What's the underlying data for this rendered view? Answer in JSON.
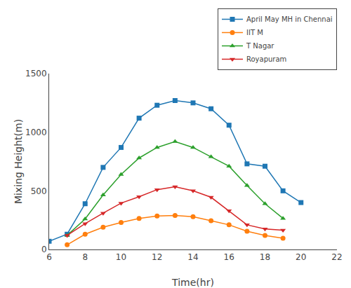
{
  "chart_data": {
    "type": "line",
    "x_label": "Time(hr)",
    "y_label": "Mixing Height(m)",
    "xlim": [
      6,
      22
    ],
    "ylim": [
      0,
      1500
    ],
    "xticks": [
      6,
      8,
      10,
      12,
      14,
      16,
      18,
      20,
      22
    ],
    "yticks": [
      0,
      500,
      1000,
      1500
    ],
    "grid": false,
    "legend": "upper right",
    "series": [
      {
        "name": "April May MH in Chennai",
        "marker": "square",
        "line_style": "solid",
        "x": [
          6,
          7,
          8,
          9,
          10,
          11,
          12,
          13,
          14,
          15,
          16,
          17,
          18,
          19,
          20
        ],
        "values": [
          70,
          130,
          390,
          700,
          870,
          1120,
          1230,
          1270,
          1250,
          1200,
          1060,
          730,
          710,
          500,
          400
        ]
      },
      {
        "name": "IIT M",
        "marker": "circle",
        "line_style": "solid",
        "x": [
          7,
          8,
          9,
          10,
          11,
          12,
          13,
          14,
          15,
          16,
          17,
          18,
          19
        ],
        "values": [
          40,
          130,
          190,
          230,
          265,
          285,
          290,
          280,
          245,
          210,
          155,
          120,
          95
        ]
      },
      {
        "name": "T Nagar",
        "marker": "triangle-up",
        "line_style": "solid",
        "x": [
          7,
          8,
          9,
          10,
          11,
          12,
          13,
          14,
          15,
          16,
          17,
          18,
          19
        ],
        "values": [
          120,
          260,
          465,
          640,
          780,
          870,
          920,
          870,
          790,
          710,
          545,
          390,
          265
        ]
      },
      {
        "name": "Royapuram",
        "marker": "triangle-down",
        "line_style": "solid",
        "x": [
          7,
          8,
          9,
          10,
          11,
          12,
          13,
          14,
          15,
          16,
          17,
          18,
          19
        ],
        "values": [
          120,
          220,
          310,
          395,
          450,
          510,
          535,
          500,
          445,
          330,
          210,
          175,
          165
        ]
      }
    ]
  }
}
